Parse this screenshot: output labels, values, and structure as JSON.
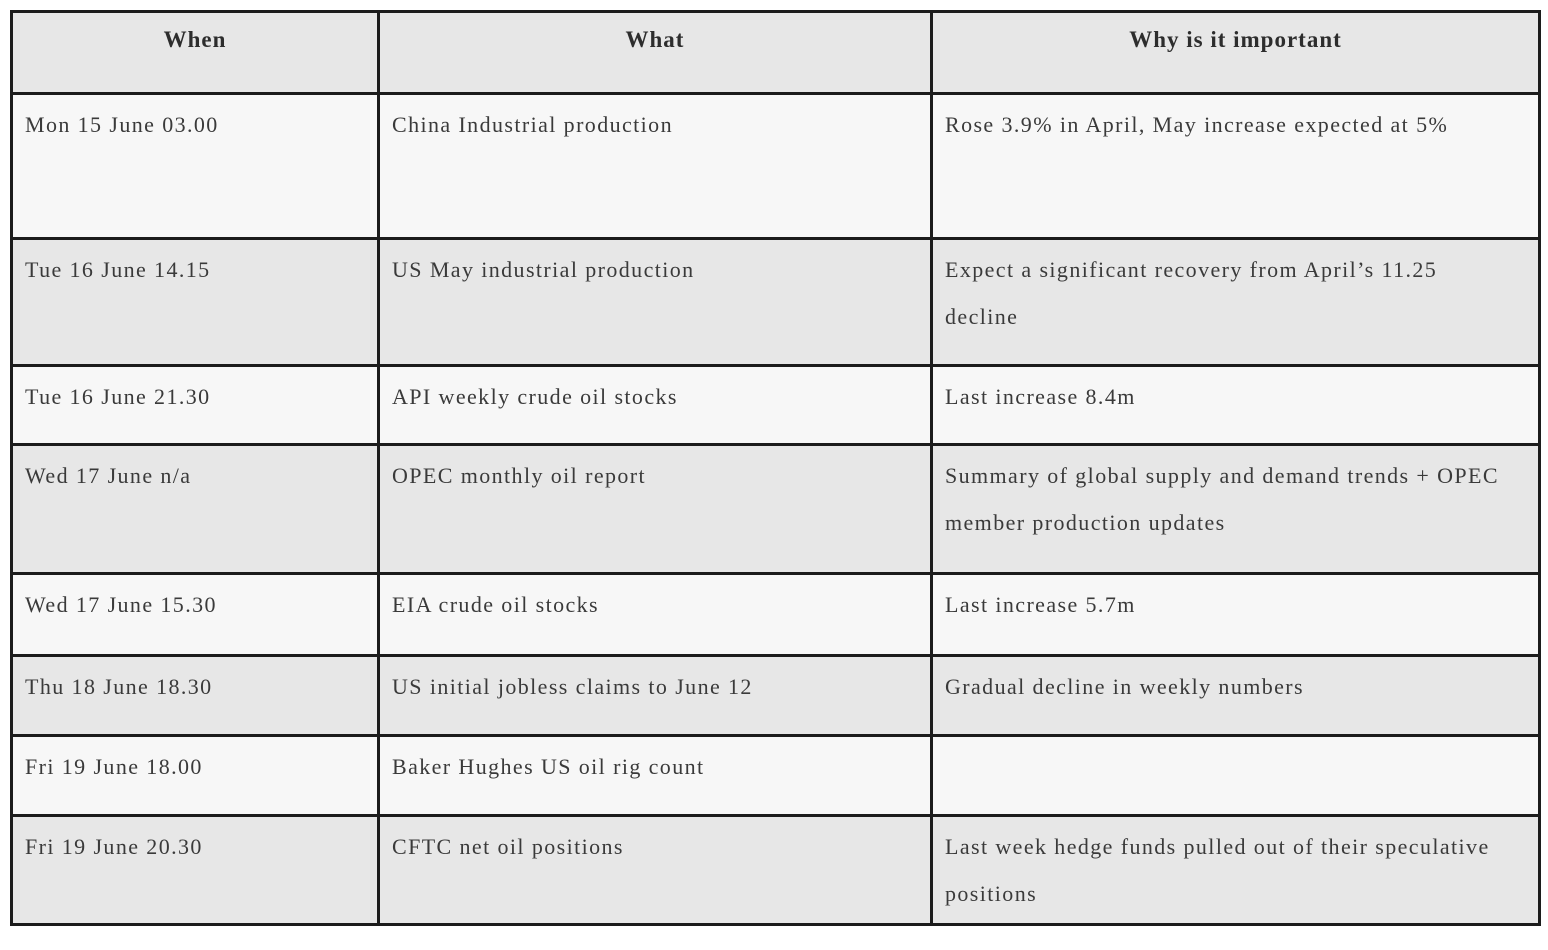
{
  "table": {
    "columns": [
      {
        "key": "when",
        "label": "When"
      },
      {
        "key": "what",
        "label": "What"
      },
      {
        "key": "why",
        "label": "Why is it important"
      }
    ],
    "rows": [
      {
        "when": "Mon 15 June 03.00",
        "what": "China Industrial production",
        "why": "Rose 3.9% in April, May increase expected at 5%"
      },
      {
        "when": "Tue 16 June 14.15",
        "what": "US May industrial production",
        "why": "Expect a significant recovery from April’s 11.25 decline"
      },
      {
        "when": "Tue 16 June 21.30",
        "what": "API weekly crude oil stocks",
        "why": "Last increase 8.4m"
      },
      {
        "when": "Wed 17 June n/a",
        "what": "OPEC monthly oil report",
        "why": "Summary of global supply and demand trends + OPEC member production updates"
      },
      {
        "when": "Wed 17 June 15.30",
        "what": "EIA crude oil stocks",
        "why": "Last increase 5.7m"
      },
      {
        "when": "Thu 18 June 18.30",
        "what": "US initial jobless claims to June 12",
        "why": "Gradual decline in weekly numbers"
      },
      {
        "when": "Fri 19 June 18.00",
        "what": "Baker Hughes US oil rig count",
        "why": ""
      },
      {
        "when": "Fri 19 June 20.30",
        "what": "CFTC net oil positions",
        "why": "Last week hedge funds pulled out of their speculative positions"
      }
    ],
    "colors": {
      "row_light": "#f7f7f7",
      "row_shaded": "#e7e7e7",
      "border": "#1c1c1c",
      "text": "#3a3a3a",
      "header_text": "#2d2d2d"
    }
  }
}
